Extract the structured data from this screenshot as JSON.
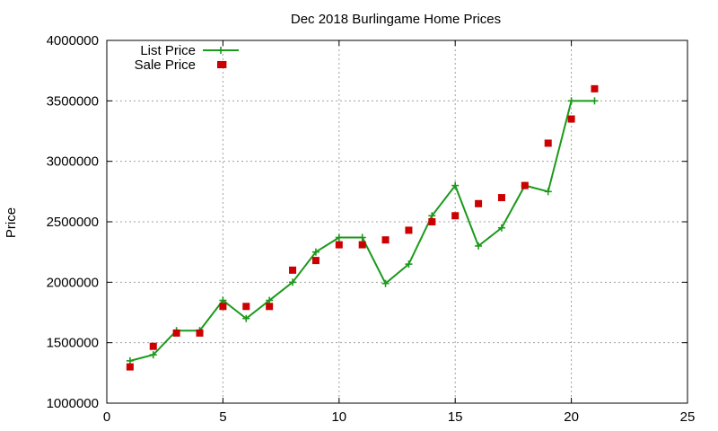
{
  "chart_data": {
    "type": "line",
    "title": "Dec 2018 Burlingame Home Prices",
    "xlabel": "",
    "ylabel": "Price",
    "xlim": [
      0,
      25
    ],
    "ylim": [
      1000000,
      4000000
    ],
    "x_ticks": [
      0,
      5,
      10,
      15,
      20,
      25
    ],
    "y_ticks": [
      1000000,
      1500000,
      2000000,
      2500000,
      3000000,
      3500000,
      4000000
    ],
    "grid": true,
    "legend_position": "top-left",
    "series": [
      {
        "name": "List Price",
        "style": "line+cross",
        "color": "#1a9a1a",
        "x": [
          1,
          2,
          3,
          4,
          5,
          6,
          7,
          8,
          9,
          10,
          11,
          12,
          13,
          14,
          15,
          16,
          17,
          18,
          19,
          20,
          21
        ],
        "values": [
          1350000,
          1400000,
          1600000,
          1600000,
          1850000,
          1700000,
          1850000,
          2000000,
          2250000,
          2370000,
          2370000,
          1990000,
          2150000,
          2550000,
          2800000,
          2300000,
          2450000,
          2800000,
          2750000,
          3500000,
          3500000
        ]
      },
      {
        "name": "Sale Price",
        "style": "square",
        "color": "#cc0000",
        "x": [
          1,
          2,
          3,
          4,
          5,
          5,
          6,
          7,
          8,
          9,
          10,
          11,
          12,
          13,
          14,
          15,
          16,
          17,
          18,
          19,
          20,
          21
        ],
        "values": [
          1300000,
          1470000,
          1580000,
          1580000,
          3800000,
          1800000,
          1800000,
          1800000,
          2100000,
          2180000,
          2310000,
          2310000,
          2350000,
          2430000,
          2500000,
          2550000,
          2650000,
          2700000,
          2800000,
          3150000,
          3350000,
          3600000
        ]
      }
    ]
  }
}
